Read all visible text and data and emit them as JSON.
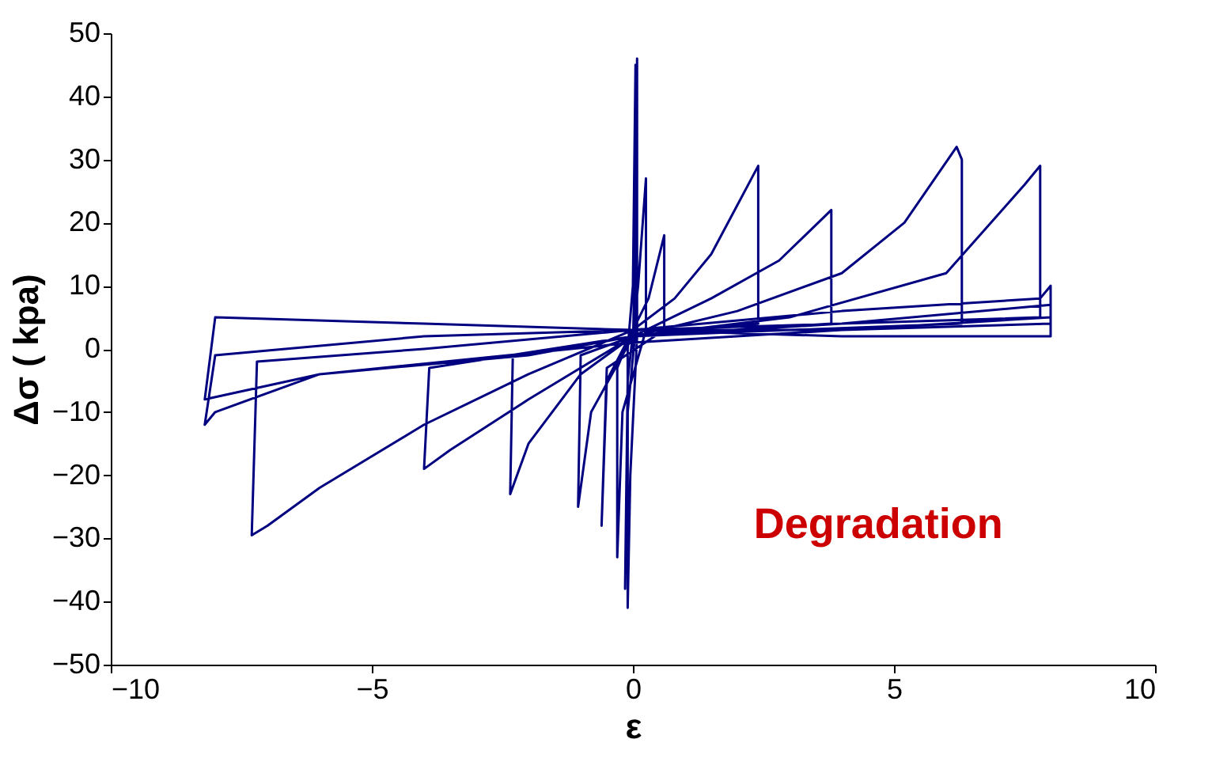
{
  "chart_data": {
    "type": "line",
    "xlabel": "ε",
    "ylabel": "Δσ ( kpa)",
    "annotations": [
      "Degradation"
    ],
    "xlim": [
      -10,
      10
    ],
    "xticks": [
      -10,
      -5,
      0,
      5,
      10
    ],
    "ylim": [
      -50,
      50
    ],
    "yticks": [
      -50,
      -40,
      -30,
      -20,
      -10,
      0,
      10,
      20,
      30,
      40,
      50
    ],
    "grid": false,
    "marker": "none",
    "line_style": "solid",
    "series": [
      {
        "color": "#000080",
        "x": [
          0,
          0.05,
          0.08,
          0.08,
          -0.05,
          -0.1,
          -0.1,
          0,
          0.05,
          0.05,
          -0.1,
          -0.15,
          -0.1,
          0.1,
          0.25,
          0.25,
          -0.2,
          -0.3,
          -0.3,
          0,
          0.3,
          0.6,
          0.6,
          -0.5,
          -0.6,
          -0.5,
          0,
          0.8,
          1.5,
          2.4,
          2.4,
          0,
          -1.0,
          -1.05,
          -0.8,
          0,
          1.5,
          2.8,
          3.8,
          3.8,
          0,
          -2.3,
          -2.35,
          -2,
          -1,
          0,
          2,
          4,
          5.2,
          6.2,
          6.3,
          6.3,
          3,
          0,
          -3.9,
          -4,
          -3.5,
          -2,
          0,
          3,
          6,
          7.5,
          7.8,
          7.8,
          4,
          0,
          -4,
          -7.2,
          -7.3,
          -7,
          -6,
          -4,
          -2,
          0,
          4,
          7.8,
          8,
          8,
          4,
          0,
          -4,
          -8,
          -8.2,
          -8,
          -6,
          -2,
          0,
          4,
          8,
          8,
          4,
          0,
          -4,
          -8,
          -8.2,
          -6,
          0,
          4,
          8,
          8
        ],
        "values": [
          0,
          20,
          46,
          2,
          -20,
          -41,
          0,
          10,
          45,
          3,
          -10,
          -38,
          -5,
          10,
          27,
          3,
          -10,
          -33,
          -3,
          3,
          8,
          18,
          3,
          -3,
          -28,
          -5,
          3,
          8,
          15,
          29,
          4,
          2,
          -1,
          -25,
          -10,
          2,
          8,
          14,
          22,
          4,
          2,
          -1,
          -23,
          -15,
          -4,
          2,
          6,
          12,
          20,
          32,
          30,
          4,
          3,
          2,
          -3,
          -19,
          -16,
          -8,
          2,
          5,
          12,
          26,
          29,
          5,
          4,
          3,
          0,
          -2,
          -29.5,
          -28,
          -22,
          -12,
          -4,
          3,
          6,
          8,
          10,
          4,
          3,
          3,
          2,
          -1,
          -12,
          -10,
          -4,
          -1,
          2,
          4,
          7,
          2,
          2,
          3,
          4,
          5,
          -8,
          -4,
          1,
          3,
          5,
          2
        ]
      }
    ]
  }
}
